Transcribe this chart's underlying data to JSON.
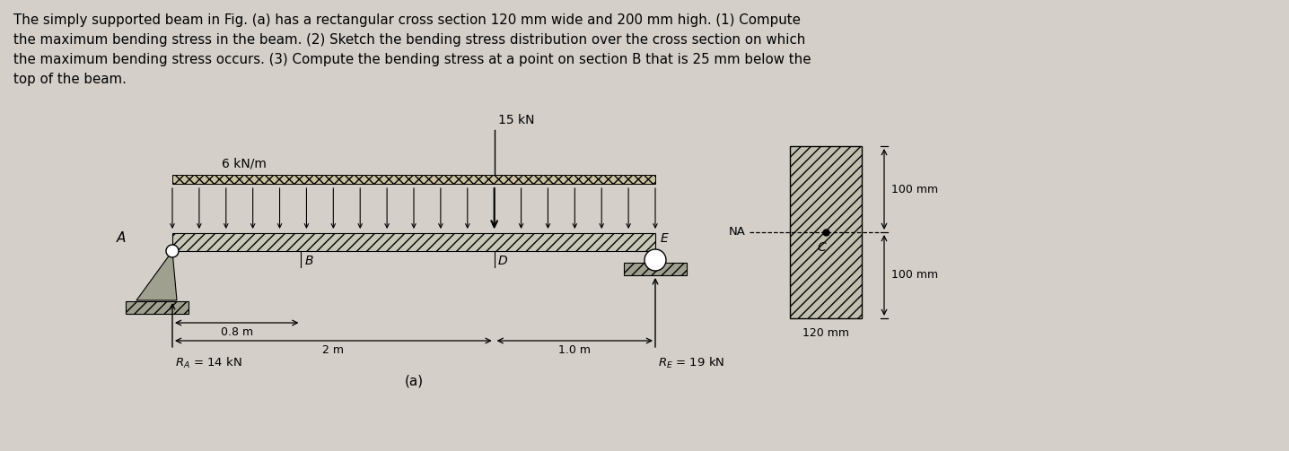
{
  "background_color": "#d4cfc8",
  "text_color": "#000000",
  "beam_facecolor": "#c8c8b8",
  "beam_edgecolor": "#000000",
  "support_color": "#a0a090",
  "cross_sec_facecolor": "#c0bfb0",
  "distributed_load_label": "6 kN/m",
  "point_load_label": "15 kN",
  "label_A": "A",
  "label_B": "B",
  "label_D": "D",
  "label_E": "E",
  "label_NA": "NA",
  "label_C": "C",
  "dim_08": "0.8 m",
  "dim_2m": "2 m",
  "dim_1m": "1.0 m",
  "dim_100mm_top": "100 mm",
  "dim_100mm_bot": "100 mm",
  "dim_120mm": "120 mm",
  "reaction_A": "R_A = 14 kN",
  "reaction_E": "R_E = 19 kN",
  "label_fig": "(a)",
  "line1": "The simply supported beam in Fig. (a) has a rectangular cross section 120 mm wide and 200 mm high. (1) Compute",
  "line2": "the maximum bending stress in the beam. (2) Sketch the bending stress distribution over the cross section on which",
  "line3": "the maximum bending stress occurs. (3) Compute the bending stress at a point on section B that is 25 mm below the",
  "line4": "top of the beam."
}
